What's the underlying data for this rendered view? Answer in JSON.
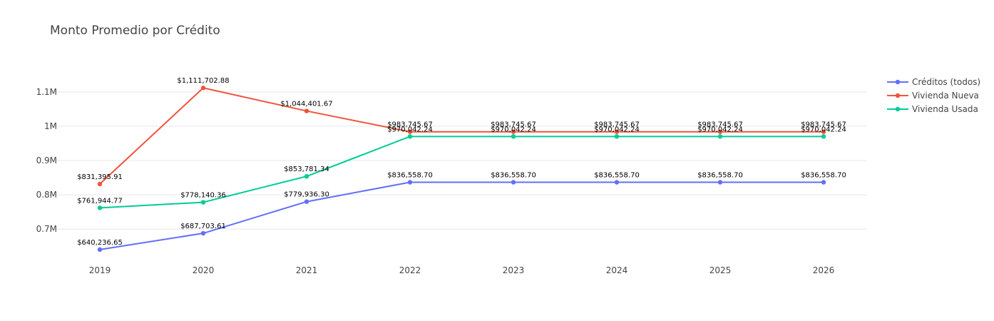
{
  "chart_data": {
    "type": "line",
    "title": "Monto Promedio por Crédito",
    "xlabel": "",
    "ylabel": "",
    "categories": [
      "2019",
      "2020",
      "2021",
      "2022",
      "2023",
      "2024",
      "2025",
      "2026"
    ],
    "y_ticks": [
      {
        "value": 700000,
        "label": "0.7M"
      },
      {
        "value": 800000,
        "label": "0.8M"
      },
      {
        "value": 900000,
        "label": "0.9M"
      },
      {
        "value": 1000000,
        "label": "1M"
      },
      {
        "value": 1100000,
        "label": "1.1M"
      }
    ],
    "ylim": [
      615000,
      1160000
    ],
    "grid": true,
    "legend_position": "top-right",
    "series": [
      {
        "name": "Créditos (todos)",
        "color": "#636efa",
        "values": [
          640236.65,
          687703.61,
          779936.3,
          836558.7,
          836558.7,
          836558.7,
          836558.7,
          836558.7
        ],
        "labels": [
          "$640,236.65",
          "$687,703.61",
          "$779,936.30",
          "$836,558.70",
          "$836,558.70",
          "$836,558.70",
          "$836,558.70",
          "$836,558.70"
        ]
      },
      {
        "name": "Vivienda Nueva",
        "color": "#ef553b",
        "values": [
          831395.91,
          1111702.88,
          1044401.67,
          983745.67,
          983745.67,
          983745.67,
          983745.67,
          983745.67
        ],
        "labels": [
          "$831,395.91",
          "$1,111,702.88",
          "$1,044,401.67",
          "$983,745.67",
          "$983,745.67",
          "$983,745.67",
          "$983,745.67",
          "$983,745.67"
        ]
      },
      {
        "name": "Vivienda Usada",
        "color": "#00cc96",
        "values": [
          761944.77,
          778140.36,
          853781.34,
          970042.24,
          970042.24,
          970042.24,
          970042.24,
          970042.24
        ],
        "labels": [
          "$761,944.77",
          "$778,140.36",
          "$853,781.34",
          "$970,042.24",
          "$970,042.24",
          "$970,042.24",
          "$970,042.24",
          "$970,042.24"
        ]
      }
    ]
  }
}
